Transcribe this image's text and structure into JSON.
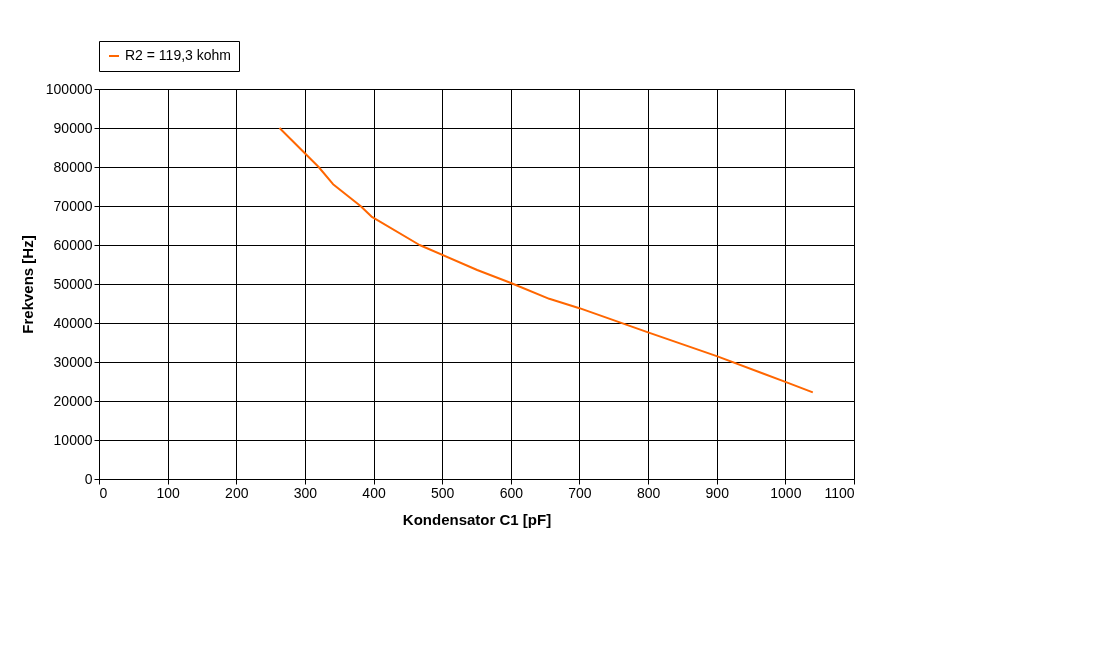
{
  "chart_data": {
    "type": "line",
    "xlabel": "Kondensator C1 [pF]",
    "ylabel": "Frekvens [Hz]",
    "xlim": [
      0,
      1100
    ],
    "xticks": [
      0,
      100,
      200,
      300,
      400,
      500,
      600,
      700,
      800,
      900,
      1000,
      1100
    ],
    "ylim": [
      0,
      100000
    ],
    "yticks": [
      0,
      10000,
      20000,
      30000,
      40000,
      50000,
      60000,
      70000,
      80000,
      90000,
      100000
    ],
    "grid": true,
    "legend": "top",
    "marker": "none",
    "line_style": "solid",
    "series": [
      {
        "name": "R2 = 119,3 kohm",
        "color": "#ff6600",
        "x": [
          263,
          320,
          341,
          381,
          397,
          467,
          551,
          601,
          656,
          700,
          800,
          900,
          1000,
          1040
        ],
        "values": [
          90000,
          80000,
          75600,
          70000,
          67300,
          60000,
          53600,
          50200,
          46200,
          43800,
          37600,
          31500,
          24900,
          22200
        ]
      }
    ]
  }
}
